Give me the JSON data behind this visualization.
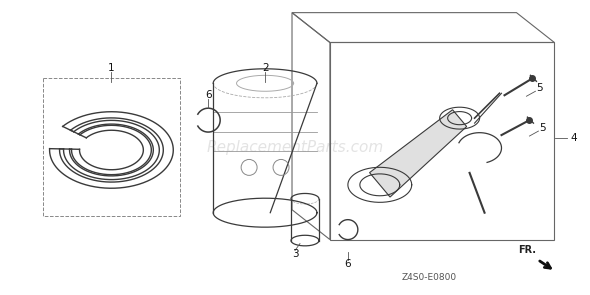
{
  "background_color": "#ffffff",
  "watermark_text": "ReplacementParts.com",
  "watermark_color": "#bbbbbb",
  "watermark_alpha": 0.4,
  "bottom_code": "Z4S0-E0800",
  "fr_label": "FR.",
  "line_color": "#3a3a3a",
  "box_color": "#666666"
}
